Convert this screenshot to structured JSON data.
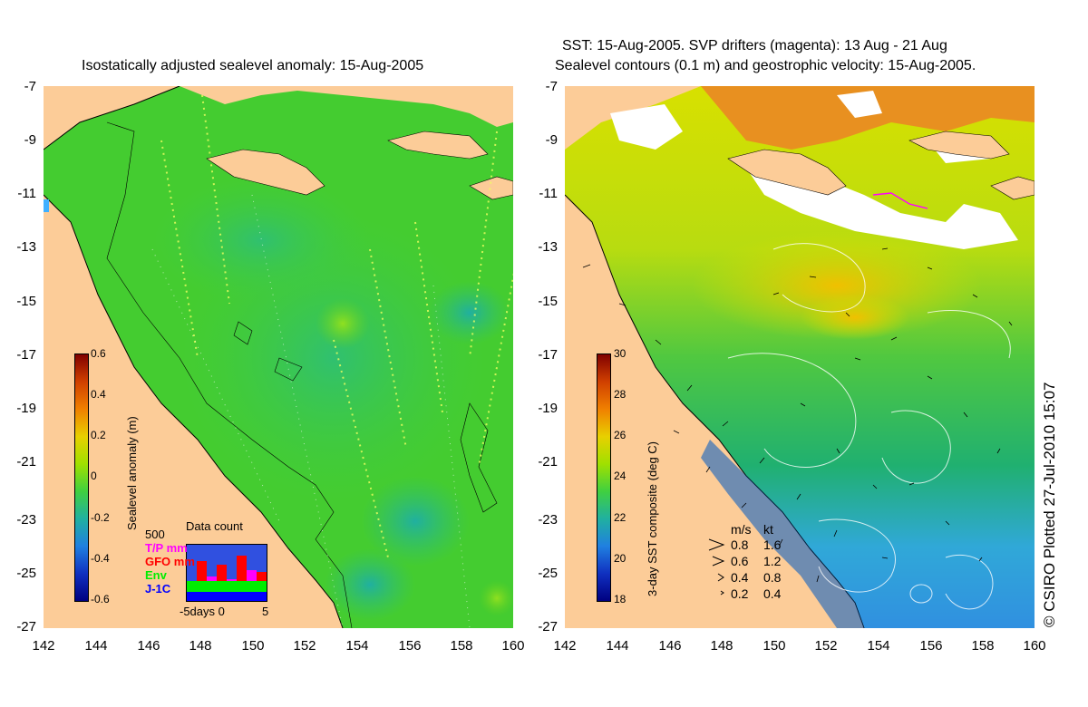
{
  "left_panel": {
    "title": "Isostatically adjusted sealevel anomaly: 15-Aug-2005",
    "colorbar": {
      "label": "Sealevel anomaly (m)",
      "ticks": [
        "0.6",
        "0.4",
        "0.2",
        "0",
        "-0.2",
        "-0.4",
        "-0.6"
      ]
    },
    "data_count": {
      "title": "Data count",
      "ymax_label": "500",
      "xlabel": "-5days 0",
      "xmax_label": "5",
      "legend": [
        {
          "label": "T/P mm",
          "color": "#ff00ff"
        },
        {
          "label": "GFO mm",
          "color": "#ff0000"
        },
        {
          "label": "Env",
          "color": "#00ee00"
        },
        {
          "label": "J-1C",
          "color": "#0000ff"
        }
      ]
    }
  },
  "right_panel": {
    "title_line1": "SST: 15-Aug-2005. SVP drifters (magenta): 13 Aug - 21 Aug",
    "title_line2": "Sealevel contours (0.1 m) and geostrophic velocity: 15-Aug-2005.",
    "colorbar": {
      "label": "3-day SST composite (deg C)",
      "ticks": [
        "30",
        "28",
        "26",
        "24",
        "22",
        "20",
        "18"
      ]
    },
    "velocity_legend": {
      "header_ms": "m/s",
      "header_kt": "kt",
      "rows": [
        {
          "ms": "0.8",
          "kt": "1.6"
        },
        {
          "ms": "0.6",
          "kt": "1.2"
        },
        {
          "ms": "0.4",
          "kt": "0.8"
        },
        {
          "ms": "0.2",
          "kt": "0.4"
        }
      ]
    }
  },
  "axes": {
    "y_ticks": [
      "-7",
      "-9",
      "-11",
      "-13",
      "-15",
      "-17",
      "-19",
      "-21",
      "-23",
      "-25",
      "-27"
    ],
    "x_ticks": [
      "142",
      "144",
      "146",
      "148",
      "150",
      "152",
      "154",
      "156",
      "158",
      "160"
    ]
  },
  "credit": "© CSIRO Plotted 27-Jul-2010 15:07",
  "colors": {
    "land": "#fccc98",
    "sea_green": "#44d02a",
    "sst_yellow": "#d8e000",
    "sst_blue": "#30b0e8",
    "cloud": "#ffffff",
    "warm_orange": "#e89020"
  }
}
